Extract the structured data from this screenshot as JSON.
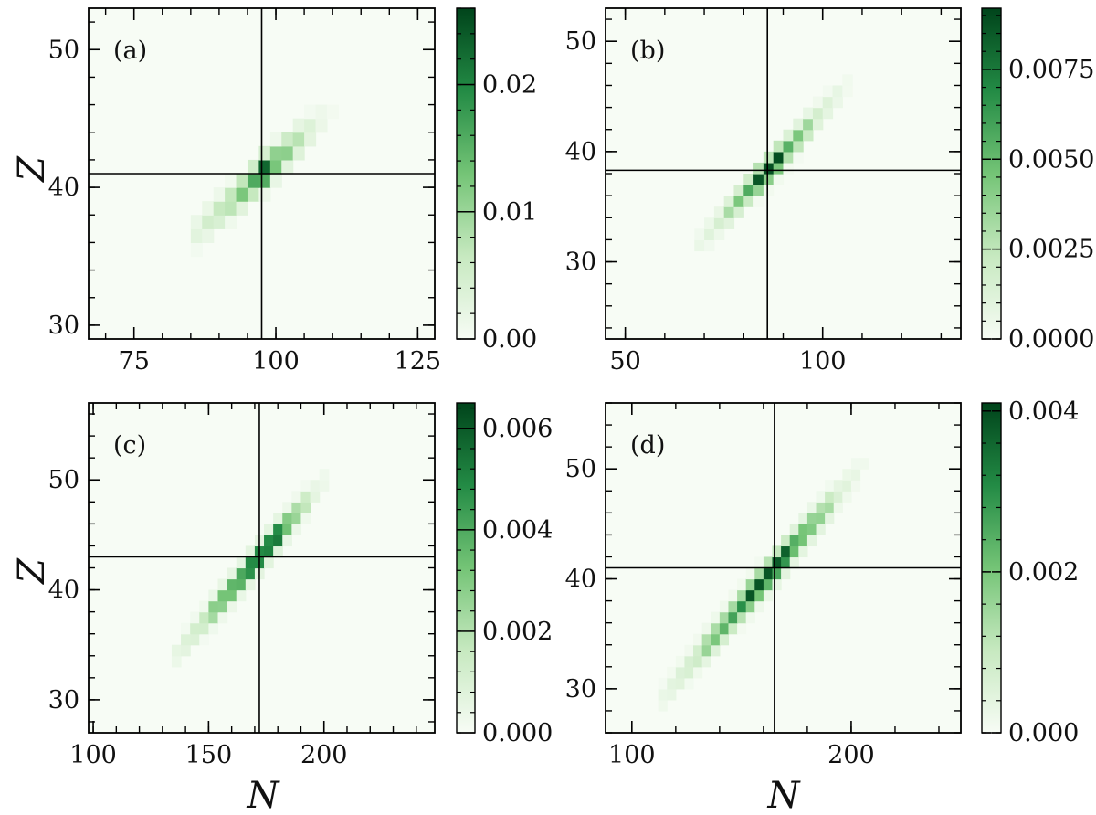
{
  "figure": {
    "xlabel": "N",
    "ylabel": "Z",
    "colormap": [
      "#f7fcf5",
      "#c7e9c0",
      "#74c476",
      "#238b45",
      "#00441b"
    ]
  },
  "chart_data": [
    {
      "type": "heatmap",
      "tag": "(a)",
      "xlim": [
        67,
        128
      ],
      "ylim": [
        29,
        53
      ],
      "xticks": [
        75,
        100,
        125
      ],
      "yticks": [
        30,
        40,
        50
      ],
      "crosshair": {
        "x": 97.5,
        "y": 41
      },
      "ridge": {
        "slope": 0.37,
        "halfwidth": 1.0,
        "max_ranges": [
          [
            85,
            92,
            0.002,
            0.009
          ],
          [
            92,
            96,
            0.01,
            0.016
          ],
          [
            96,
            99.5,
            0.024,
            0.026
          ],
          [
            99.5,
            106,
            0.016,
            0.004
          ],
          [
            106,
            111,
            0.003,
            0.0
          ]
        ]
      },
      "bins": {
        "dx": 2,
        "dy": 1
      },
      "colorbar": {
        "min": 0,
        "max": 0.026,
        "ticks": [
          0,
          0.01,
          0.02
        ],
        "tick_labels": [
          "0.00",
          "0.01",
          "0.02"
        ]
      }
    },
    {
      "type": "heatmap",
      "tag": "(b)",
      "xlim": [
        45,
        135
      ],
      "ylim": [
        23,
        53
      ],
      "xticks": [
        50,
        100
      ],
      "yticks": [
        30,
        40,
        50
      ],
      "crosshair": {
        "x": 86,
        "y": 38.3
      },
      "ridge": {
        "slope": 0.385,
        "halfwidth": 1.0,
        "max_ranges": [
          [
            68,
            76,
            0.0005,
            0.002
          ],
          [
            76,
            82,
            0.003,
            0.006
          ],
          [
            82,
            90,
            0.0085,
            0.0092
          ],
          [
            90,
            98,
            0.006,
            0.003
          ],
          [
            98,
            108,
            0.002,
            0.0
          ]
        ]
      },
      "bins": {
        "dx": 2.5,
        "dy": 1
      },
      "colorbar": {
        "min": 0,
        "max": 0.0092,
        "ticks": [
          0,
          0.0025,
          0.005,
          0.0075
        ],
        "tick_labels": [
          "0.0000",
          "0.0025",
          "0.0050",
          "0.0075"
        ]
      }
    },
    {
      "type": "heatmap",
      "tag": "(c)",
      "xlim": [
        98,
        248
      ],
      "ylim": [
        27,
        57
      ],
      "xticks": [
        100,
        150,
        200
      ],
      "yticks": [
        30,
        40,
        50
      ],
      "crosshair": {
        "x": 172,
        "y": 43
      },
      "ridge": {
        "slope": 0.245,
        "halfwidth": 1.0,
        "max_ranges": [
          [
            135,
            150,
            0.0005,
            0.002
          ],
          [
            150,
            164,
            0.003,
            0.005
          ],
          [
            164,
            180,
            0.006,
            0.0065
          ],
          [
            180,
            192,
            0.005,
            0.002
          ],
          [
            192,
            205,
            0.001,
            0.0
          ]
        ]
      },
      "bins": {
        "dx": 4,
        "dy": 1
      },
      "colorbar": {
        "min": 0,
        "max": 0.0065,
        "ticks": [
          0,
          0.002,
          0.004,
          0.006
        ],
        "tick_labels": [
          "0.000",
          "0.002",
          "0.004",
          "0.006"
        ]
      }
    },
    {
      "type": "heatmap",
      "tag": "(d)",
      "xlim": [
        88,
        250
      ],
      "ylim": [
        26,
        56
      ],
      "xticks": [
        100,
        200
      ],
      "yticks": [
        30,
        40,
        50
      ],
      "crosshair": {
        "x": 165,
        "y": 41
      },
      "ridge": {
        "slope": 0.23,
        "halfwidth": 1.1,
        "max_ranges": [
          [
            112,
            130,
            0.0002,
            0.001
          ],
          [
            130,
            150,
            0.0015,
            0.003
          ],
          [
            150,
            172,
            0.0038,
            0.0041
          ],
          [
            172,
            190,
            0.003,
            0.0015
          ],
          [
            190,
            210,
            0.0008,
            0.0
          ]
        ]
      },
      "bins": {
        "dx": 4,
        "dy": 1
      },
      "colorbar": {
        "min": 0,
        "max": 0.0041,
        "ticks": [
          0,
          0.002,
          0.004
        ],
        "tick_labels": [
          "0.000",
          "0.002",
          "0.004"
        ]
      }
    }
  ]
}
